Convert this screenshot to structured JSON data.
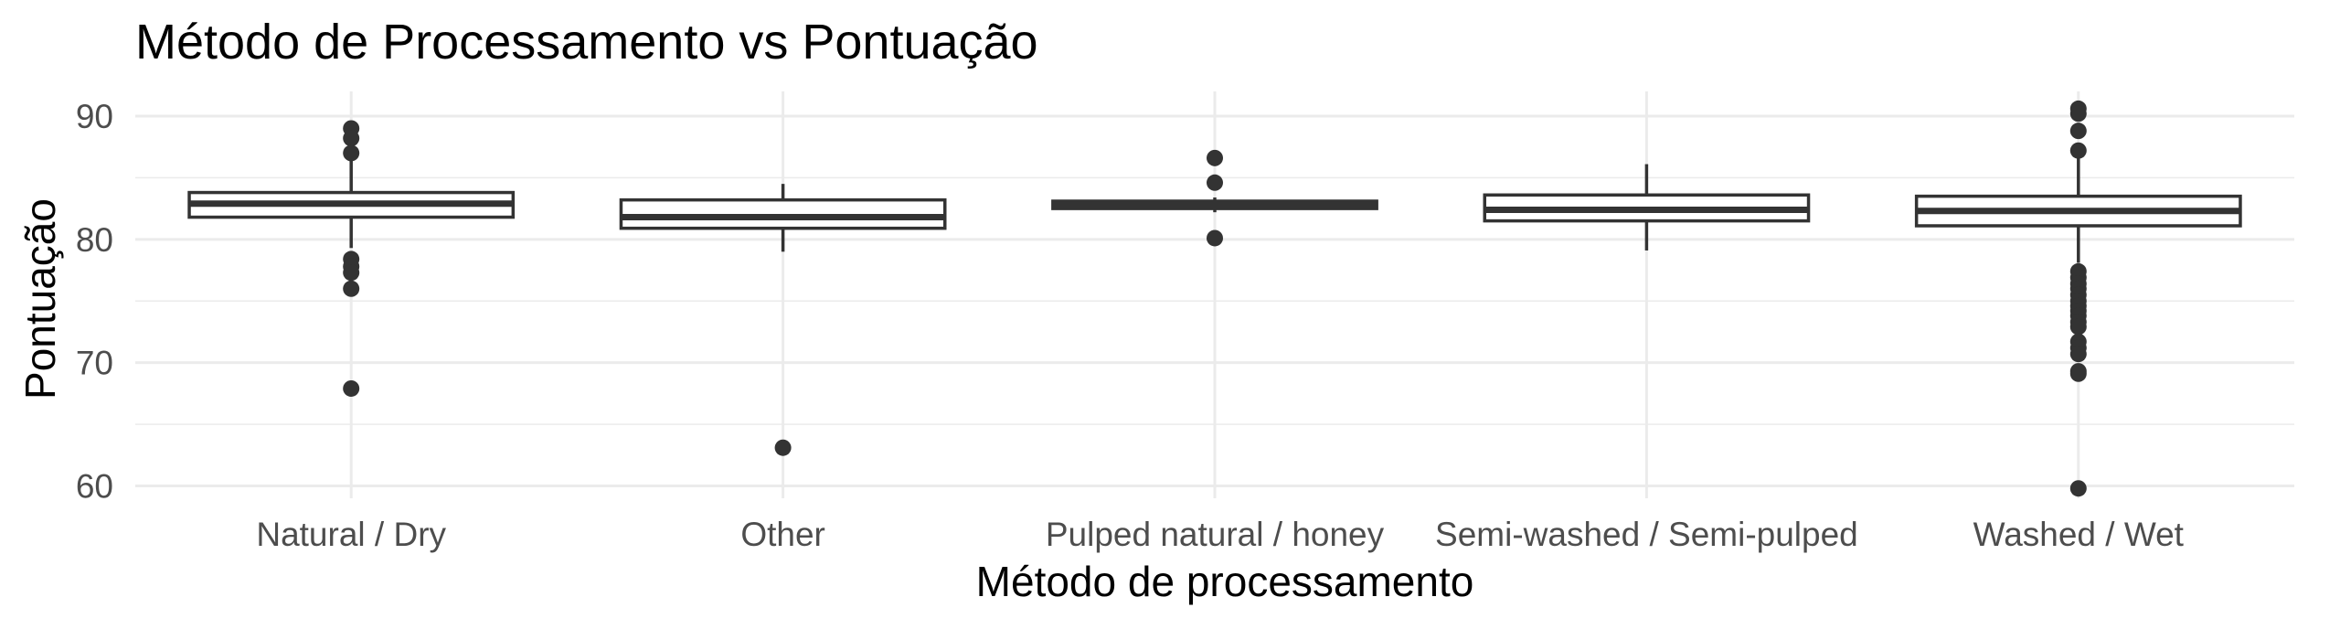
{
  "chart_data": {
    "type": "boxplot",
    "title": "Método de Processamento vs Pontuação",
    "xlabel": "Método de processamento",
    "ylabel": "Pontuação",
    "ylim": [
      59,
      92
    ],
    "yticks": [
      60,
      70,
      80,
      90
    ],
    "grid": true,
    "categories": [
      "Natural / Dry",
      "Other",
      "Pulped natural / honey",
      "Semi-washed / Semi-pulped",
      "Washed / Wet"
    ],
    "boxes": [
      {
        "category": "Natural / Dry",
        "whisker_low": 79.3,
        "q1": 81.8,
        "median": 82.9,
        "q3": 83.8,
        "whisker_high": 86.7,
        "outliers": [
          89.0,
          88.2,
          87.0,
          78.4,
          77.8,
          77.3,
          76.0,
          67.9
        ]
      },
      {
        "category": "Other",
        "whisker_low": 79.0,
        "q1": 80.9,
        "median": 81.8,
        "q3": 83.2,
        "whisker_high": 84.5,
        "outliers": [
          63.1
        ]
      },
      {
        "category": "Pulped natural / honey",
        "whisker_low": 82.2,
        "q1": 82.5,
        "median": 82.8,
        "q3": 83.1,
        "whisker_high": 83.4,
        "outliers": [
          86.6,
          84.6,
          80.1
        ]
      },
      {
        "category": "Semi-washed / Semi-pulped",
        "whisker_low": 79.1,
        "q1": 81.5,
        "median": 82.4,
        "q3": 83.6,
        "whisker_high": 86.1,
        "outliers": []
      },
      {
        "category": "Washed / Wet",
        "whisker_low": 78.1,
        "q1": 81.1,
        "median": 82.3,
        "q3": 83.5,
        "whisker_high": 86.8,
        "outliers": [
          90.6,
          90.2,
          88.8,
          87.2,
          77.4,
          76.9,
          76.4,
          76.0,
          75.5,
          75.0,
          74.6,
          74.2,
          73.8,
          73.3,
          72.9,
          71.7,
          71.2,
          70.7,
          69.3,
          69.1,
          59.8
        ]
      }
    ]
  }
}
